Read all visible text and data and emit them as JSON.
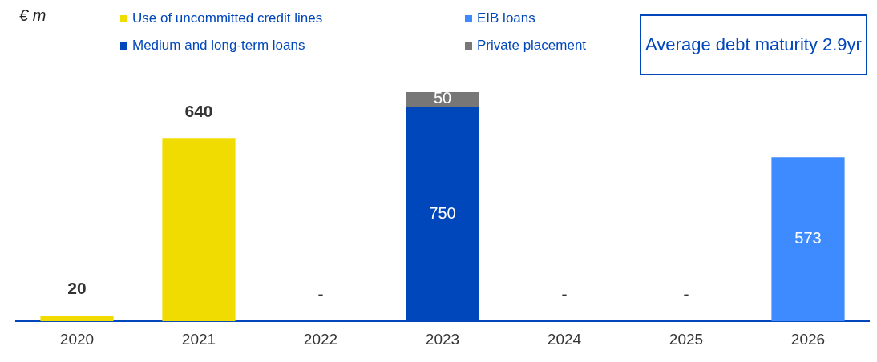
{
  "chart_data": {
    "type": "bar",
    "stacked": true,
    "ylabel": "€ m",
    "legend": "top",
    "categories": [
      "2020",
      "2021",
      "2022",
      "2023",
      "2024",
      "2025",
      "2026"
    ],
    "series": [
      {
        "name": "Use of uncommitted credit lines",
        "color": "#f0dc00",
        "values": [
          20,
          640,
          0,
          null,
          0,
          0,
          null
        ],
        "value_labels": [
          "20",
          "640",
          "-",
          null,
          "-",
          "-",
          null
        ]
      },
      {
        "name": "Medium and long-term loans",
        "color": "#0047bb",
        "values": [
          null,
          null,
          null,
          750,
          null,
          null,
          null
        ],
        "value_labels": [
          null,
          null,
          null,
          "750",
          null,
          null,
          null
        ]
      },
      {
        "name": "EIB loans",
        "color": "#3d8bff",
        "values": [
          null,
          null,
          null,
          null,
          null,
          null,
          573
        ],
        "value_labels": [
          null,
          null,
          null,
          null,
          null,
          null,
          "573"
        ]
      },
      {
        "name": "Private placement",
        "color": "#777777",
        "values": [
          null,
          null,
          null,
          50,
          null,
          null,
          null
        ],
        "value_labels": [
          null,
          null,
          null,
          "50",
          null,
          null,
          null
        ]
      }
    ],
    "annotations": [
      "Average debt maturity 2.9yr"
    ]
  }
}
